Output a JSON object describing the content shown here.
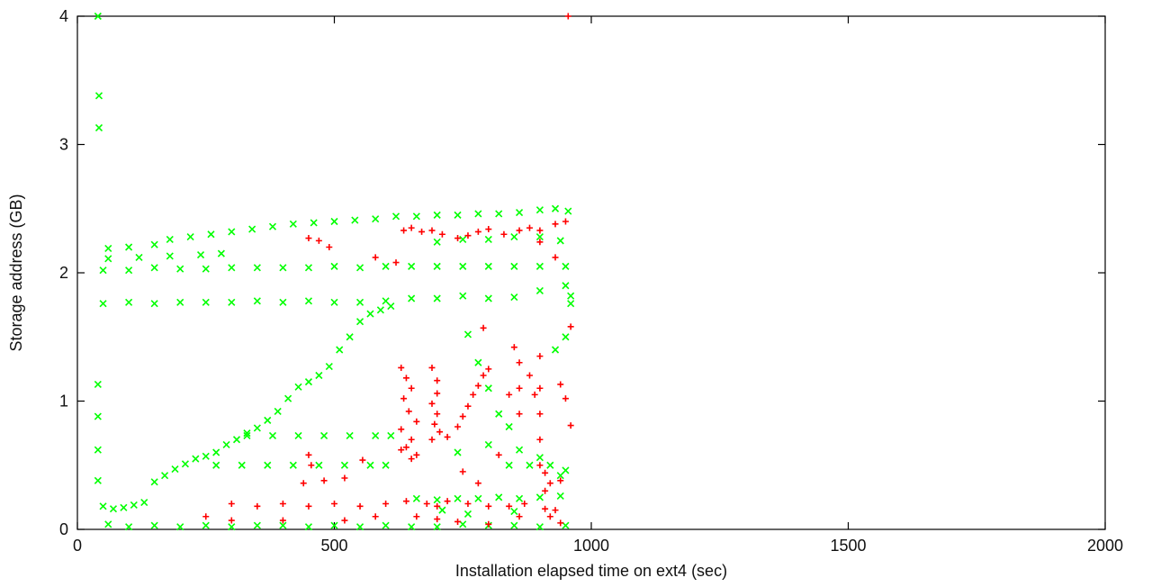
{
  "chart_data": {
    "type": "scatter",
    "title": "",
    "xlabel": "Installation elapsed time on ext4 (sec)",
    "ylabel": "Storage address (GB)",
    "xlim": [
      0,
      2000
    ],
    "ylim": [
      0,
      4
    ],
    "xticks": [
      "0",
      "500",
      "1000",
      "1500",
      "2000"
    ],
    "yticks": [
      "0",
      "1",
      "2",
      "3",
      "4"
    ],
    "grid": false,
    "legend": "none",
    "series": [
      {
        "marker": "x",
        "color": "#00ff00",
        "points": [
          [
            40,
            4.0
          ],
          [
            42,
            3.38
          ],
          [
            42,
            3.13
          ],
          [
            40,
            1.13
          ],
          [
            40,
            0.88
          ],
          [
            40,
            0.62
          ],
          [
            40,
            0.38
          ],
          [
            50,
            0.18
          ],
          [
            70,
            0.16
          ],
          [
            90,
            0.17
          ],
          [
            110,
            0.19
          ],
          [
            130,
            0.21
          ],
          [
            150,
            0.37
          ],
          [
            170,
            0.42
          ],
          [
            190,
            0.47
          ],
          [
            210,
            0.51
          ],
          [
            230,
            0.55
          ],
          [
            250,
            0.57
          ],
          [
            270,
            0.6
          ],
          [
            290,
            0.66
          ],
          [
            310,
            0.7
          ],
          [
            330,
            0.75
          ],
          [
            350,
            0.79
          ],
          [
            370,
            0.85
          ],
          [
            390,
            0.92
          ],
          [
            410,
            1.02
          ],
          [
            430,
            1.11
          ],
          [
            450,
            1.15
          ],
          [
            470,
            1.2
          ],
          [
            490,
            1.27
          ],
          [
            510,
            1.4
          ],
          [
            530,
            1.5
          ],
          [
            550,
            1.62
          ],
          [
            570,
            1.68
          ],
          [
            590,
            1.71
          ],
          [
            610,
            1.74
          ],
          [
            50,
            1.76
          ],
          [
            100,
            1.77
          ],
          [
            150,
            1.76
          ],
          [
            200,
            1.77
          ],
          [
            250,
            1.77
          ],
          [
            300,
            1.77
          ],
          [
            350,
            1.78
          ],
          [
            400,
            1.77
          ],
          [
            450,
            1.78
          ],
          [
            500,
            1.77
          ],
          [
            550,
            1.77
          ],
          [
            600,
            1.78
          ],
          [
            650,
            1.8
          ],
          [
            700,
            1.8
          ],
          [
            750,
            1.82
          ],
          [
            800,
            1.8
          ],
          [
            850,
            1.81
          ],
          [
            900,
            1.86
          ],
          [
            950,
            1.9
          ],
          [
            960,
            1.76
          ],
          [
            960,
            1.82
          ],
          [
            50,
            2.02
          ],
          [
            100,
            2.02
          ],
          [
            150,
            2.04
          ],
          [
            200,
            2.03
          ],
          [
            250,
            2.03
          ],
          [
            300,
            2.04
          ],
          [
            350,
            2.04
          ],
          [
            400,
            2.04
          ],
          [
            450,
            2.04
          ],
          [
            500,
            2.05
          ],
          [
            550,
            2.04
          ],
          [
            600,
            2.05
          ],
          [
            650,
            2.05
          ],
          [
            700,
            2.05
          ],
          [
            750,
            2.05
          ],
          [
            800,
            2.05
          ],
          [
            850,
            2.05
          ],
          [
            900,
            2.05
          ],
          [
            950,
            2.05
          ],
          [
            60,
            2.19
          ],
          [
            100,
            2.2
          ],
          [
            150,
            2.22
          ],
          [
            180,
            2.26
          ],
          [
            220,
            2.28
          ],
          [
            260,
            2.3
          ],
          [
            300,
            2.32
          ],
          [
            340,
            2.34
          ],
          [
            380,
            2.36
          ],
          [
            420,
            2.38
          ],
          [
            460,
            2.39
          ],
          [
            500,
            2.4
          ],
          [
            540,
            2.41
          ],
          [
            580,
            2.42
          ],
          [
            620,
            2.44
          ],
          [
            660,
            2.44
          ],
          [
            700,
            2.45
          ],
          [
            740,
            2.45
          ],
          [
            780,
            2.46
          ],
          [
            820,
            2.46
          ],
          [
            860,
            2.47
          ],
          [
            900,
            2.49
          ],
          [
            930,
            2.5
          ],
          [
            955,
            2.48
          ],
          [
            700,
            2.24
          ],
          [
            750,
            2.26
          ],
          [
            800,
            2.26
          ],
          [
            850,
            2.28
          ],
          [
            900,
            2.28
          ],
          [
            940,
            2.25
          ],
          [
            60,
            2.11
          ],
          [
            120,
            2.12
          ],
          [
            180,
            2.13
          ],
          [
            240,
            2.14
          ],
          [
            280,
            2.15
          ],
          [
            60,
            0.04
          ],
          [
            100,
            0.02
          ],
          [
            150,
            0.03
          ],
          [
            200,
            0.02
          ],
          [
            250,
            0.03
          ],
          [
            300,
            0.02
          ],
          [
            350,
            0.03
          ],
          [
            400,
            0.03
          ],
          [
            450,
            0.02
          ],
          [
            500,
            0.03
          ],
          [
            550,
            0.02
          ],
          [
            600,
            0.03
          ],
          [
            650,
            0.02
          ],
          [
            700,
            0.02
          ],
          [
            750,
            0.04
          ],
          [
            800,
            0.03
          ],
          [
            850,
            0.03
          ],
          [
            900,
            0.02
          ],
          [
            950,
            0.03
          ],
          [
            330,
            0.73
          ],
          [
            380,
            0.73
          ],
          [
            430,
            0.73
          ],
          [
            480,
            0.73
          ],
          [
            530,
            0.73
          ],
          [
            580,
            0.73
          ],
          [
            610,
            0.73
          ],
          [
            270,
            0.5
          ],
          [
            320,
            0.5
          ],
          [
            370,
            0.5
          ],
          [
            420,
            0.5
          ],
          [
            470,
            0.5
          ],
          [
            520,
            0.5
          ],
          [
            570,
            0.5
          ],
          [
            600,
            0.5
          ],
          [
            660,
            0.24
          ],
          [
            700,
            0.23
          ],
          [
            740,
            0.24
          ],
          [
            780,
            0.24
          ],
          [
            820,
            0.25
          ],
          [
            860,
            0.24
          ],
          [
            900,
            0.25
          ],
          [
            940,
            0.26
          ],
          [
            760,
            1.52
          ],
          [
            780,
            1.3
          ],
          [
            800,
            1.1
          ],
          [
            820,
            0.9
          ],
          [
            840,
            0.8
          ],
          [
            860,
            0.62
          ],
          [
            880,
            0.5
          ],
          [
            900,
            0.56
          ],
          [
            920,
            0.5
          ],
          [
            940,
            0.42
          ],
          [
            950,
            0.46
          ],
          [
            740,
            0.6
          ],
          [
            800,
            0.66
          ],
          [
            840,
            0.5
          ],
          [
            710,
            0.15
          ],
          [
            760,
            0.12
          ],
          [
            850,
            0.14
          ],
          [
            930,
            1.4
          ],
          [
            950,
            1.5
          ]
        ]
      },
      {
        "marker": "+",
        "color": "#ff0000",
        "points": [
          [
            955,
            4.0
          ],
          [
            635,
            2.33
          ],
          [
            650,
            2.35
          ],
          [
            670,
            2.32
          ],
          [
            690,
            2.33
          ],
          [
            710,
            2.3
          ],
          [
            740,
            2.27
          ],
          [
            760,
            2.29
          ],
          [
            780,
            2.32
          ],
          [
            800,
            2.34
          ],
          [
            830,
            2.3
          ],
          [
            860,
            2.33
          ],
          [
            880,
            2.35
          ],
          [
            900,
            2.33
          ],
          [
            930,
            2.38
          ],
          [
            950,
            2.4
          ],
          [
            450,
            2.27
          ],
          [
            470,
            2.25
          ],
          [
            490,
            2.2
          ],
          [
            580,
            2.12
          ],
          [
            620,
            2.08
          ],
          [
            900,
            2.24
          ],
          [
            930,
            2.12
          ],
          [
            630,
            1.26
          ],
          [
            640,
            1.18
          ],
          [
            650,
            1.1
          ],
          [
            635,
            1.02
          ],
          [
            645,
            0.92
          ],
          [
            660,
            0.84
          ],
          [
            630,
            0.78
          ],
          [
            650,
            0.7
          ],
          [
            640,
            0.64
          ],
          [
            660,
            0.58
          ],
          [
            630,
            0.62
          ],
          [
            650,
            0.55
          ],
          [
            690,
            1.26
          ],
          [
            700,
            1.16
          ],
          [
            700,
            1.06
          ],
          [
            690,
            0.98
          ],
          [
            700,
            0.9
          ],
          [
            695,
            0.82
          ],
          [
            705,
            0.76
          ],
          [
            690,
            0.7
          ],
          [
            720,
            0.72
          ],
          [
            740,
            0.8
          ],
          [
            750,
            0.88
          ],
          [
            760,
            0.96
          ],
          [
            770,
            1.05
          ],
          [
            780,
            1.12
          ],
          [
            790,
            1.2
          ],
          [
            800,
            1.25
          ],
          [
            790,
            1.57
          ],
          [
            850,
            1.42
          ],
          [
            860,
            1.3
          ],
          [
            860,
            1.1
          ],
          [
            860,
            0.9
          ],
          [
            880,
            1.2
          ],
          [
            890,
            1.05
          ],
          [
            900,
            1.35
          ],
          [
            900,
            1.1
          ],
          [
            900,
            0.9
          ],
          [
            900,
            0.7
          ],
          [
            900,
            0.5
          ],
          [
            910,
            0.44
          ],
          [
            910,
            0.3
          ],
          [
            920,
            0.36
          ],
          [
            940,
            0.38
          ],
          [
            960,
            1.58
          ],
          [
            950,
            1.02
          ],
          [
            960,
            0.81
          ],
          [
            940,
            1.13
          ],
          [
            555,
            0.54
          ],
          [
            450,
            0.58
          ],
          [
            455,
            0.5
          ],
          [
            440,
            0.36
          ],
          [
            480,
            0.38
          ],
          [
            520,
            0.4
          ],
          [
            750,
            0.45
          ],
          [
            780,
            0.36
          ],
          [
            820,
            0.58
          ],
          [
            840,
            1.05
          ],
          [
            300,
            0.2
          ],
          [
            350,
            0.18
          ],
          [
            400,
            0.2
          ],
          [
            450,
            0.18
          ],
          [
            500,
            0.2
          ],
          [
            550,
            0.18
          ],
          [
            600,
            0.2
          ],
          [
            640,
            0.22
          ],
          [
            680,
            0.2
          ],
          [
            700,
            0.18
          ],
          [
            720,
            0.22
          ],
          [
            760,
            0.2
          ],
          [
            800,
            0.18
          ],
          [
            840,
            0.18
          ],
          [
            870,
            0.2
          ],
          [
            910,
            0.16
          ],
          [
            930,
            0.15
          ],
          [
            660,
            0.1
          ],
          [
            700,
            0.08
          ],
          [
            740,
            0.06
          ],
          [
            800,
            0.04
          ],
          [
            860,
            0.1
          ],
          [
            920,
            0.1
          ],
          [
            940,
            0.05
          ],
          [
            520,
            0.07
          ],
          [
            580,
            0.1
          ],
          [
            400,
            0.07
          ],
          [
            300,
            0.07
          ],
          [
            250,
            0.1
          ]
        ]
      }
    ]
  }
}
